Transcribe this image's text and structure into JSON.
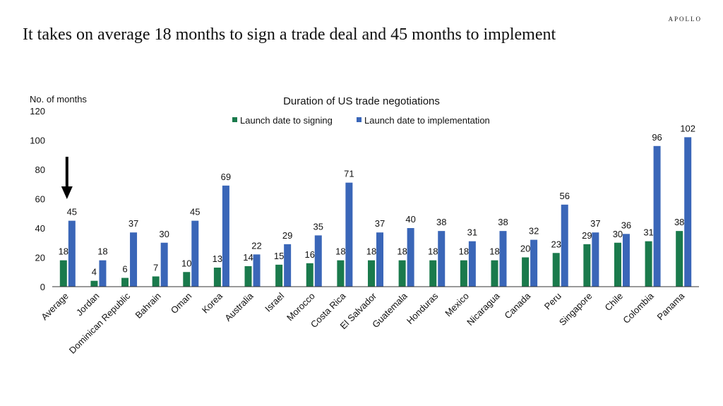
{
  "brand": "APOLLO",
  "headline": "It takes on average 18 months to sign a trade deal and 45 months to implement",
  "chart_data": {
    "type": "bar",
    "title": "Duration of US trade negotiations",
    "ylabel": "No. of months",
    "xlabel": "",
    "ylim": [
      0,
      120
    ],
    "yticks": [
      0,
      20,
      40,
      60,
      80,
      100,
      120
    ],
    "legend_position": "top",
    "grid": false,
    "categories": [
      "Average",
      "Jordan",
      "Dominican Republic",
      "Bahrain",
      "Oman",
      "Korea",
      "Australia",
      "Israel",
      "Morocco",
      "Costa Rica",
      "El Salvador",
      "Guatemala",
      "Honduras",
      "Mexico",
      "Nicaragua",
      "Canada",
      "Peru",
      "Singapore",
      "Chile",
      "Colombia",
      "Panama"
    ],
    "series": [
      {
        "name": "Launch date to signing",
        "color": "#1a7a4c",
        "values": [
          18,
          4,
          6,
          7,
          10,
          13,
          14,
          15,
          16,
          18,
          18,
          18,
          18,
          18,
          18,
          20,
          23,
          29,
          30,
          31,
          38
        ]
      },
      {
        "name": "Launch date to implementation",
        "color": "#3a66b8",
        "values": [
          45,
          18,
          37,
          30,
          45,
          69,
          22,
          29,
          35,
          71,
          37,
          40,
          38,
          31,
          38,
          32,
          56,
          37,
          36,
          96,
          102
        ]
      }
    ],
    "annotation": {
      "type": "arrow-down",
      "category": "Average"
    }
  }
}
